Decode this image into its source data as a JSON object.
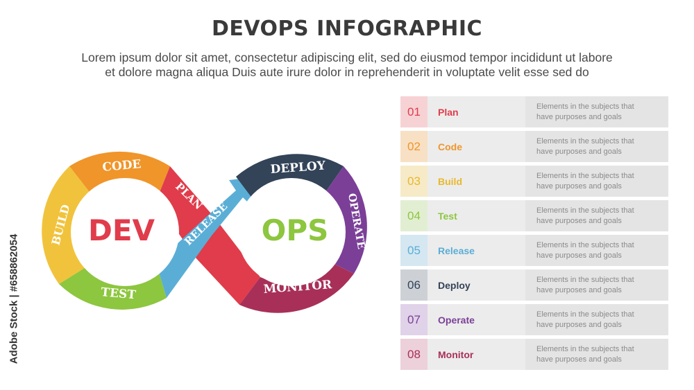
{
  "header": {
    "title": "DEVOPS INFOGRAPHIC",
    "subtitle_line1": "Lorem ipsum dolor sit amet, consectetur adipiscing elit, sed do eiusmod tempor incididunt ut labore",
    "subtitle_line2": "et dolore magna aliqua Duis aute irure dolor in reprehenderit in voluptate velit esse sed do"
  },
  "watermark": "Adobe Stock | #658862054",
  "diagram": {
    "dev_label": "DEV",
    "ops_label": "OPS",
    "segments": [
      {
        "label": "CODE",
        "color": "#f0952a"
      },
      {
        "label": "BUILD",
        "color": "#f1c33c"
      },
      {
        "label": "TEST",
        "color": "#8dc63f"
      },
      {
        "label": "RELEASE",
        "color": "#5aaed6"
      },
      {
        "label": "DEPLOY",
        "color": "#334358"
      },
      {
        "label": "OPERATE",
        "color": "#7b3f98"
      },
      {
        "label": "MONITOR",
        "color": "#a83058"
      },
      {
        "label": "PLAN",
        "color": "#e03c4b"
      }
    ],
    "dev_color": "#e03c4b",
    "ops_color": "#8dc63f"
  },
  "steps": [
    {
      "num": "01",
      "name": "Plan",
      "color": "#e03c4b",
      "tint": "#f6d2d5",
      "desc_line1": "Elements in the subjects that",
      "desc_line2": "have purposes and goals"
    },
    {
      "num": "02",
      "name": "Code",
      "color": "#f0952a",
      "tint": "#f8e0c4",
      "desc_line1": "Elements in the subjects that",
      "desc_line2": "have purposes and goals"
    },
    {
      "num": "03",
      "name": "Build",
      "color": "#e8b82c",
      "tint": "#f6eac7",
      "desc_line1": "Elements in the subjects that",
      "desc_line2": "have purposes and goals"
    },
    {
      "num": "04",
      "name": "Test",
      "color": "#8dc63f",
      "tint": "#e2eed2",
      "desc_line1": "Elements in the subjects that",
      "desc_line2": "have purposes and goals"
    },
    {
      "num": "05",
      "name": "Release",
      "color": "#5aaed6",
      "tint": "#d5e7f1",
      "desc_line1": "Elements in the subjects that",
      "desc_line2": "have purposes and goals"
    },
    {
      "num": "06",
      "name": "Deploy",
      "color": "#334358",
      "tint": "#cdd1d6",
      "desc_line1": "Elements in the subjects that",
      "desc_line2": "have purposes and goals"
    },
    {
      "num": "07",
      "name": "Operate",
      "color": "#7b3f98",
      "tint": "#e0d2e8",
      "desc_line1": "Elements in the subjects that",
      "desc_line2": "have purposes and goals"
    },
    {
      "num": "08",
      "name": "Monitor",
      "color": "#a83058",
      "tint": "#ecd0da",
      "desc_line1": "Elements in the subjects that",
      "desc_line2": "have purposes and goals"
    }
  ]
}
